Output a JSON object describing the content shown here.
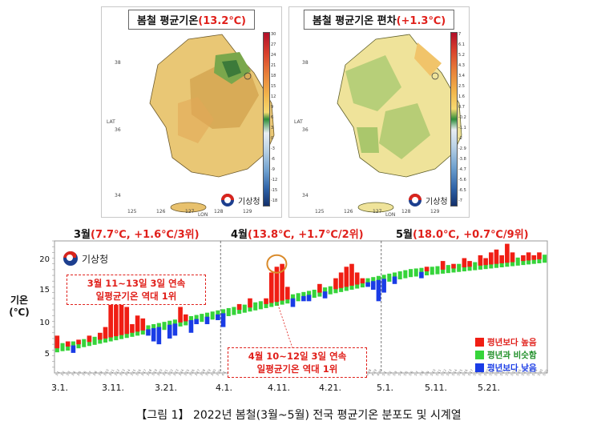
{
  "map_left": {
    "title_prefix": "봄철 평균기온",
    "title_value": "(13.2℃)",
    "lat_label": "LAT",
    "lon_label": "LON",
    "lat_ticks": [
      "38",
      "36",
      "34"
    ],
    "lon_ticks": [
      "125",
      "126",
      "127",
      "128",
      "129"
    ],
    "colorbar_ticks": [
      "30",
      "27",
      "24",
      "21",
      "18",
      "15",
      "12",
      "9",
      "6",
      "3",
      "0",
      "-3",
      "-6",
      "-9",
      "-12",
      "-15",
      "-18"
    ],
    "logo_text": "기상청"
  },
  "map_right": {
    "title_prefix": "봄철 평균기온 편차",
    "title_value": "(+1.3℃)",
    "lat_label": "LAT",
    "lon_label": "LON",
    "lat_ticks": [
      "38",
      "36",
      "34"
    ],
    "lon_ticks": [
      "125",
      "126",
      "127",
      "128",
      "129"
    ],
    "colorbar_ticks": [
      "7",
      "6.1",
      "5.2",
      "4.3",
      "3.4",
      "2.5",
      "1.6",
      "0.7",
      "-0.2",
      "-1.1",
      "-2",
      "-2.9",
      "-3.8",
      "-4.7",
      "-5.6",
      "-6.5",
      "-7"
    ],
    "logo_text": "기상청"
  },
  "chart_data": {
    "type": "bar",
    "title": "",
    "ylabel": "기온(℃)",
    "ylim": [
      0,
      23
    ],
    "yticks": [
      5,
      10,
      15,
      20
    ],
    "xticks": [
      "3.1.",
      "3.11.",
      "3.21.",
      "4.1.",
      "4.11.",
      "4.21.",
      "5.1.",
      "5.11.",
      "5.21."
    ],
    "month_headers": [
      {
        "month": "3월",
        "detail": "(7.7℃, +1.6℃/3위)"
      },
      {
        "month": "4월",
        "detail": "(13.8℃, +1.7℃/2위)"
      },
      {
        "month": "5월",
        "detail": "(18.0℃, +0.7℃/9위)"
      }
    ],
    "logo_text": "기상청",
    "callouts": [
      [
        "3월 11~13일 3일 연속",
        "일평균기온 역대 1위"
      ],
      [
        "4월 10~12일 3일 연속",
        "일평균기온 역대 1위"
      ]
    ],
    "legend": [
      {
        "label": "평년보다 높음",
        "color": "#f01e14"
      },
      {
        "label": "평년과 비슷함",
        "color": "#36d43a"
      },
      {
        "label": "평년보다 낮음",
        "color": "#1a3ce6"
      }
    ],
    "dates": [
      "3.1",
      "3.2",
      "3.3",
      "3.4",
      "3.5",
      "3.6",
      "3.7",
      "3.8",
      "3.9",
      "3.10",
      "3.11",
      "3.12",
      "3.13",
      "3.14",
      "3.15",
      "3.16",
      "3.17",
      "3.18",
      "3.19",
      "3.20",
      "3.21",
      "3.22",
      "3.23",
      "3.24",
      "3.25",
      "3.26",
      "3.27",
      "3.28",
      "3.29",
      "3.30",
      "3.31",
      "4.1",
      "4.2",
      "4.3",
      "4.4",
      "4.5",
      "4.6",
      "4.7",
      "4.8",
      "4.9",
      "4.10",
      "4.11",
      "4.12",
      "4.13",
      "4.14",
      "4.15",
      "4.16",
      "4.17",
      "4.18",
      "4.19",
      "4.20",
      "4.21",
      "4.22",
      "4.23",
      "4.24",
      "4.25",
      "4.26",
      "4.27",
      "4.28",
      "4.29",
      "4.30",
      "5.1",
      "5.2",
      "5.3",
      "5.4",
      "5.5",
      "5.6",
      "5.7",
      "5.8",
      "5.9",
      "5.10",
      "5.11",
      "5.12",
      "5.13",
      "5.14",
      "5.15",
      "5.16",
      "5.17",
      "5.18",
      "5.19",
      "5.20",
      "5.21",
      "5.22",
      "5.23",
      "5.24",
      "5.25",
      "5.26",
      "5.27",
      "5.28",
      "5.29",
      "5.30",
      "5.31"
    ],
    "normal": [
      4.3,
      4.5,
      4.6,
      4.8,
      5.0,
      5.2,
      5.4,
      5.6,
      5.8,
      6.0,
      6.2,
      6.4,
      6.6,
      6.8,
      7.0,
      7.2,
      7.4,
      7.6,
      7.8,
      8.0,
      8.2,
      8.4,
      8.6,
      8.8,
      9.0,
      9.2,
      9.4,
      9.6,
      9.8,
      10.0,
      10.2,
      10.4,
      10.6,
      10.8,
      11.0,
      11.2,
      11.4,
      11.6,
      11.8,
      12.0,
      12.2,
      12.4,
      12.6,
      12.8,
      13.0,
      13.2,
      13.4,
      13.6,
      13.8,
      14.0,
      14.2,
      14.4,
      14.6,
      14.8,
      15.0,
      15.2,
      15.4,
      15.6,
      15.8,
      16.0,
      16.2,
      16.4,
      16.6,
      16.8,
      17.0,
      17.2,
      17.4,
      17.5,
      17.6,
      17.7,
      17.8,
      17.9,
      18.0,
      18.1,
      18.2,
      18.3,
      18.4,
      18.5,
      18.6,
      18.7,
      18.8,
      18.9,
      19.0,
      19.1,
      19.2,
      19.3,
      19.4,
      19.5,
      19.6,
      19.7,
      19.8,
      19.9
    ],
    "observed": [
      6.5,
      4.3,
      5.5,
      3.5,
      5.8,
      5.5,
      6.5,
      5.6,
      7.0,
      8.0,
      12.5,
      13.0,
      14.5,
      11.5,
      8.5,
      10.0,
      9.5,
      6.5,
      5.5,
      5.0,
      7.5,
      6.0,
      6.5,
      11.5,
      10.2,
      7.0,
      8.5,
      9.0,
      8.5,
      10.5,
      9.2,
      8.0,
      11.0,
      11.5,
      12.0,
      10.5,
      13.0,
      12.0,
      12.5,
      13.0,
      17.5,
      18.5,
      19.0,
      15.0,
      11.5,
      12.8,
      12.5,
      12.5,
      14.5,
      15.5,
      13.0,
      15.0,
      16.5,
      17.5,
      18.5,
      19.0,
      17.5,
      16.5,
      15.0,
      14.5,
      12.5,
      14.0,
      16.0,
      15.5,
      16.5,
      17.0,
      18.0,
      17.5,
      16.5,
      18.5,
      18.0,
      18.5,
      19.5,
      18.5,
      19.0,
      18.5,
      20.0,
      19.5,
      19.0,
      20.5,
      20.0,
      21.0,
      21.5,
      20.5,
      22.5,
      21.0,
      20.0,
      20.5,
      21.0,
      20.5,
      21.0,
      20.0
    ]
  },
  "caption": "【그림 1】 2022년 봄철(3월~5월) 전국 평균기온 분포도 및 시계열"
}
